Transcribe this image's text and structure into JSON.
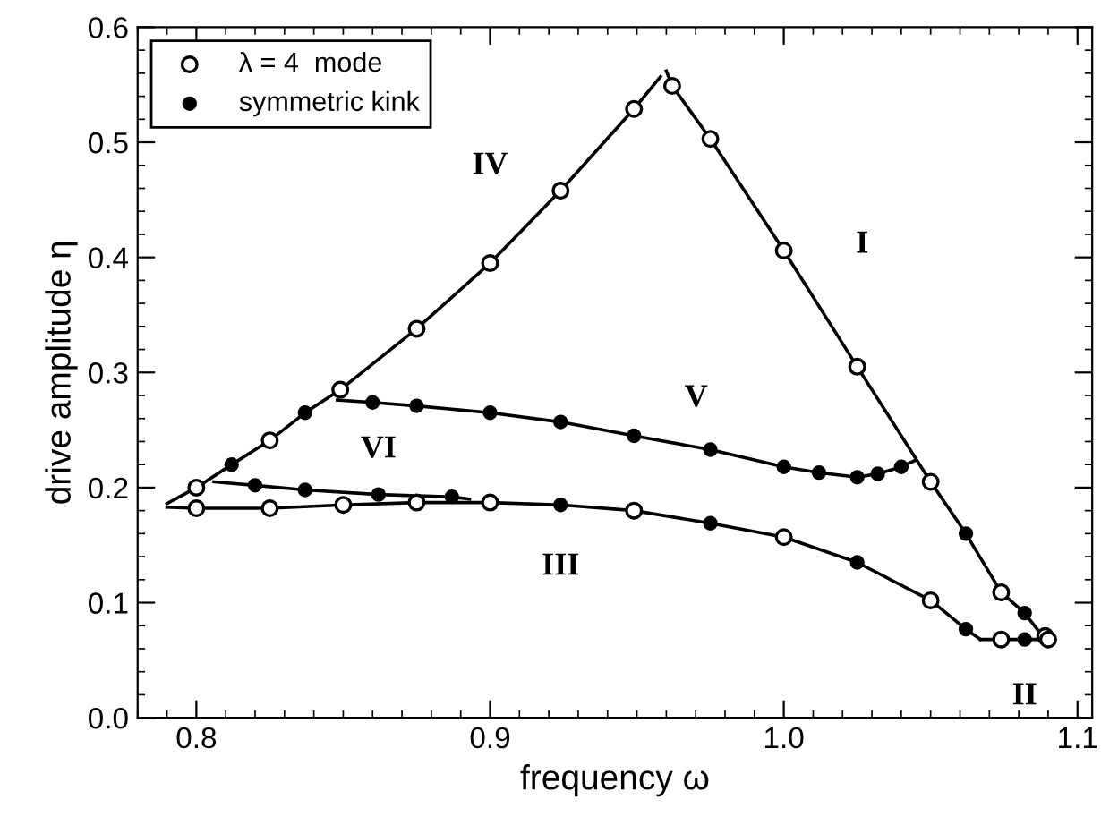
{
  "chart_data": {
    "type": "scatter",
    "xlabel": "frequency ω",
    "ylabel": "drive amplitude η",
    "xlim": [
      0.78,
      1.105
    ],
    "ylim": [
      0,
      0.6
    ],
    "xticks": [
      {
        "value": 0.8,
        "label": "0.8"
      },
      {
        "value": 0.9,
        "label": "0.9"
      },
      {
        "value": 1.0,
        "label": "1.0"
      },
      {
        "value": 1.1,
        "label": "1.1"
      }
    ],
    "yticks": [
      {
        "value": 0,
        "label": "0.0"
      },
      0.1,
      0.2,
      0.3,
      0.4,
      0.5,
      0.6
    ],
    "grid": false,
    "legend": "top left",
    "series": [
      {
        "type": "line",
        "color": "#000000",
        "marker": "none",
        "line_style": "solid",
        "x": [
          0.79,
          0.8,
          0.812,
          0.825,
          0.837,
          0.849,
          0.875,
          0.9,
          0.924,
          0.949,
          0.958
        ],
        "values": [
          0.186,
          0.2,
          0.22,
          0.241,
          0.265,
          0.285,
          0.338,
          0.395,
          0.458,
          0.529,
          0.557
        ]
      },
      {
        "type": "line",
        "color": "#000000",
        "marker": "none",
        "line_style": "solid",
        "x": [
          0.96,
          0.962,
          0.975,
          1.0,
          1.025,
          1.05,
          1.062,
          1.074,
          1.082,
          1.089
        ],
        "values": [
          0.562,
          0.549,
          0.503,
          0.406,
          0.305,
          0.205,
          0.16,
          0.109,
          0.091,
          0.068
        ]
      },
      {
        "type": "line",
        "color": "#000000",
        "marker": "none",
        "line_style": "solid",
        "x": [
          1.067,
          1.074,
          1.082,
          1.09
        ],
        "values": [
          0.068,
          0.068,
          0.068,
          0.068
        ]
      },
      {
        "type": "line",
        "color": "#000000",
        "marker": "none",
        "line_style": "solid",
        "x": [
          0.79,
          0.8,
          0.825,
          0.85,
          0.875,
          0.9,
          0.924,
          0.949,
          0.975,
          1.0,
          1.025,
          1.05,
          1.062,
          1.067
        ],
        "values": [
          0.183,
          0.182,
          0.182,
          0.185,
          0.187,
          0.187,
          0.185,
          0.18,
          0.169,
          0.157,
          0.135,
          0.102,
          0.077,
          0.068
        ]
      },
      {
        "type": "line",
        "color": "#000000",
        "marker": "none",
        "line_style": "solid",
        "x": [
          0.848,
          0.86,
          0.875,
          0.9,
          0.924,
          0.949,
          0.975,
          1.0,
          1.012,
          1.025,
          1.032,
          1.04,
          1.045
        ],
        "values": [
          0.276,
          0.274,
          0.271,
          0.265,
          0.257,
          0.245,
          0.233,
          0.218,
          0.213,
          0.209,
          0.212,
          0.218,
          0.224
        ]
      },
      {
        "type": "line",
        "color": "#000000",
        "marker": "none",
        "line_style": "solid",
        "x": [
          0.806,
          0.82,
          0.837,
          0.862,
          0.887,
          0.893
        ],
        "values": [
          0.205,
          0.202,
          0.198,
          0.194,
          0.192,
          0.19
        ]
      },
      {
        "name": "λ = 4  mode",
        "color": "#ffffff",
        "marker": "circle",
        "x": [
          0.8,
          0.825,
          0.849,
          0.875,
          0.9,
          0.924,
          0.949,
          0.962,
          0.975,
          1.0,
          1.025,
          1.05,
          1.074,
          1.089,
          1.074,
          1.09,
          0.8,
          0.825,
          0.85,
          0.875,
          0.9,
          0.949,
          1.0,
          1.05
        ],
        "values": [
          0.2,
          0.241,
          0.285,
          0.338,
          0.395,
          0.458,
          0.529,
          0.549,
          0.503,
          0.406,
          0.305,
          0.205,
          0.109,
          0.071,
          0.068,
          0.068,
          0.182,
          0.182,
          0.185,
          0.187,
          0.187,
          0.18,
          0.157,
          0.102
        ]
      },
      {
        "name": "symmetric kink",
        "color": "#000000",
        "marker": "circle",
        "x": [
          0.812,
          0.837,
          1.062,
          1.082,
          1.082,
          0.924,
          0.975,
          1.025,
          1.062,
          0.86,
          0.875,
          0.9,
          0.924,
          0.949,
          0.975,
          1.0,
          1.012,
          1.025,
          1.032,
          1.04,
          0.82,
          0.837,
          0.862,
          0.887
        ],
        "values": [
          0.22,
          0.265,
          0.16,
          0.091,
          0.068,
          0.185,
          0.169,
          0.135,
          0.077,
          0.274,
          0.271,
          0.265,
          0.257,
          0.245,
          0.233,
          0.218,
          0.213,
          0.209,
          0.212,
          0.218,
          0.202,
          0.198,
          0.194,
          0.192
        ]
      }
    ],
    "annotations": [
      "IV",
      "I",
      "II",
      "III",
      "V",
      "VI"
    ]
  }
}
